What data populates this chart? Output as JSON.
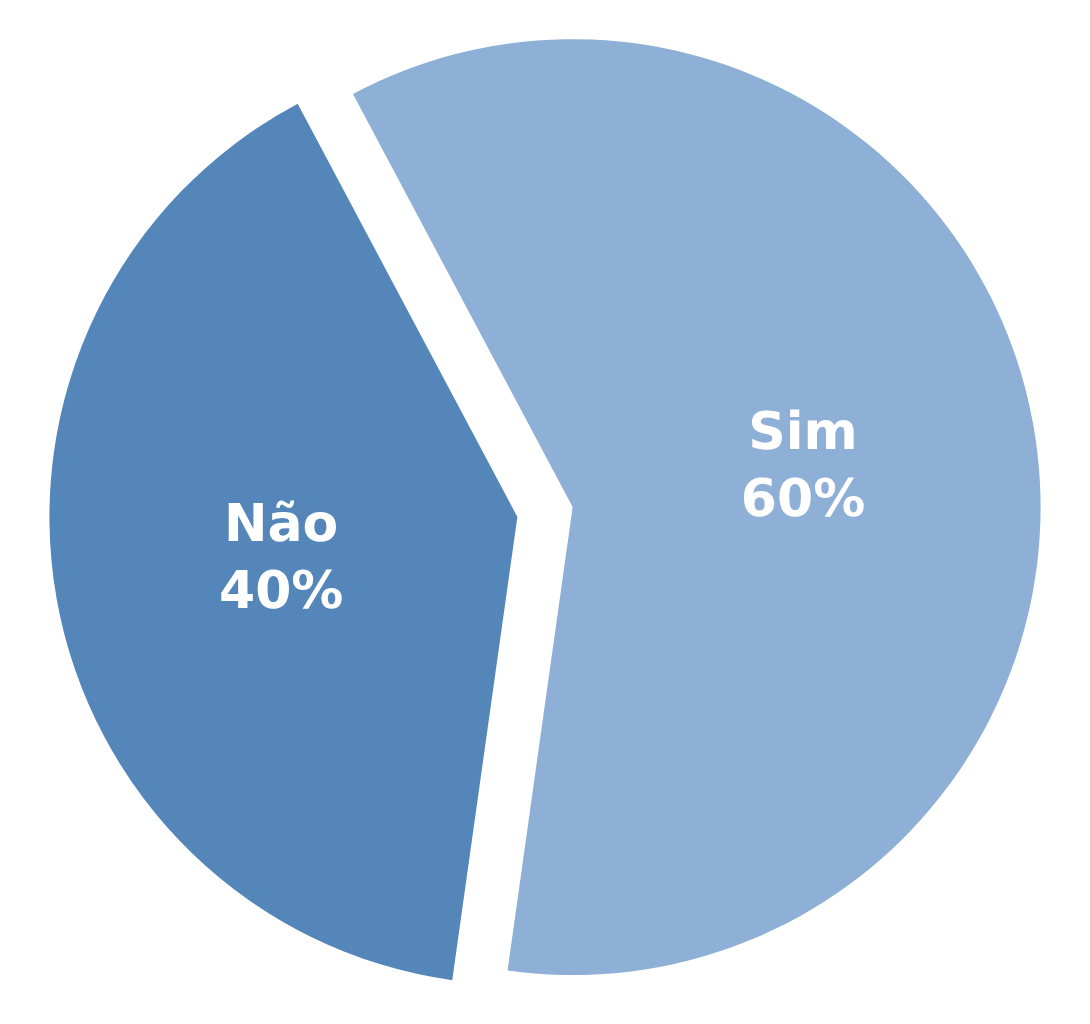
{
  "chart_data": {
    "type": "pie",
    "categories": [
      "Sim",
      "Não"
    ],
    "values": [
      60,
      40
    ],
    "value_labels": [
      "60%",
      "40%"
    ],
    "colors": [
      "#8eafd6",
      "#5486ba"
    ],
    "legend": false
  }
}
